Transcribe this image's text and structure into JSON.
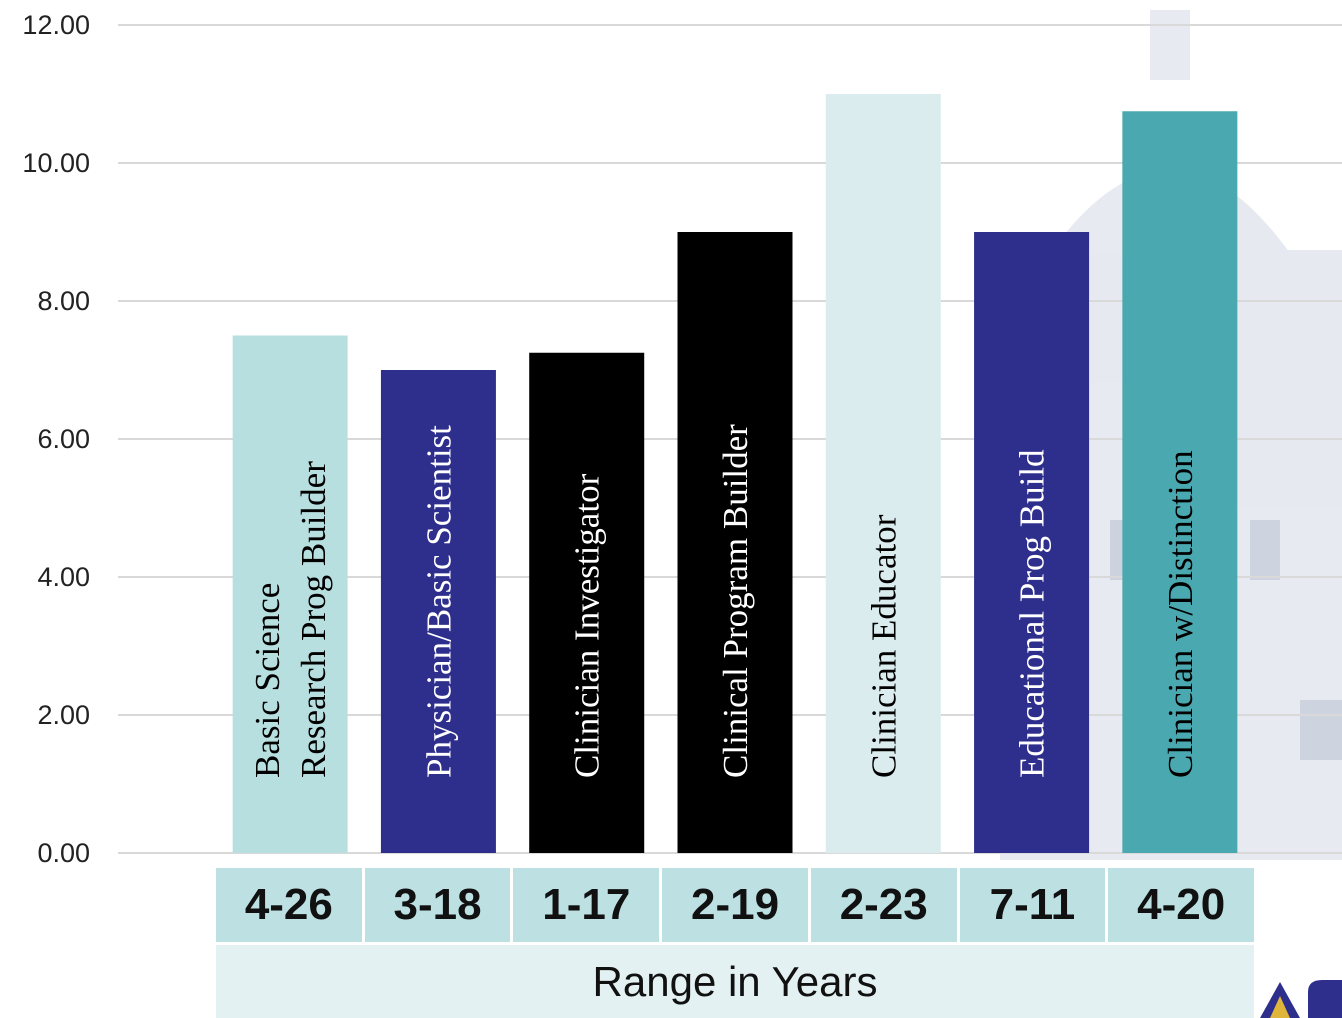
{
  "chart_data": {
    "type": "bar",
    "categories": [
      "Basic Science Research Prog Builder",
      "Physician/Basic Scientist",
      "Clinician Investigator",
      "Clinical Program Builder",
      "Clinician Educator",
      "Educational Prog Build",
      "Clinician w/Distinction"
    ],
    "bar_label_lines": [
      [
        "Basic Science",
        "Research Prog Builder"
      ],
      [
        "Physician/Basic Scientist"
      ],
      [
        "Clinician Investigator"
      ],
      [
        "Clinical Program Builder"
      ],
      [
        "Clinician Educator"
      ],
      [
        "Educational Prog Build"
      ],
      [
        "Clinician w/Distinction"
      ]
    ],
    "values": [
      7.5,
      7.0,
      7.25,
      9.0,
      11.0,
      9.0,
      10.75
    ],
    "ranges": [
      "4-26",
      "3-18",
      "1-17",
      "2-19",
      "2-23",
      "7-11",
      "4-20"
    ],
    "xlabel": "Range in Years",
    "ylabel": "",
    "ylim": [
      0,
      12
    ],
    "yticks": [
      "0.00",
      "2.00",
      "4.00",
      "6.00",
      "8.00",
      "10.00",
      "12.00"
    ],
    "grid": true,
    "colors": [
      "#b8dfe0",
      "#2e2e8c",
      "#000000",
      "#000000",
      "#daecee",
      "#2e2e8c",
      "#4aa8b0"
    ],
    "label_colors": [
      "#000000",
      "#ffffff",
      "#ffffff",
      "#ffffff",
      "#000000",
      "#ffffff",
      "#000000"
    ]
  }
}
